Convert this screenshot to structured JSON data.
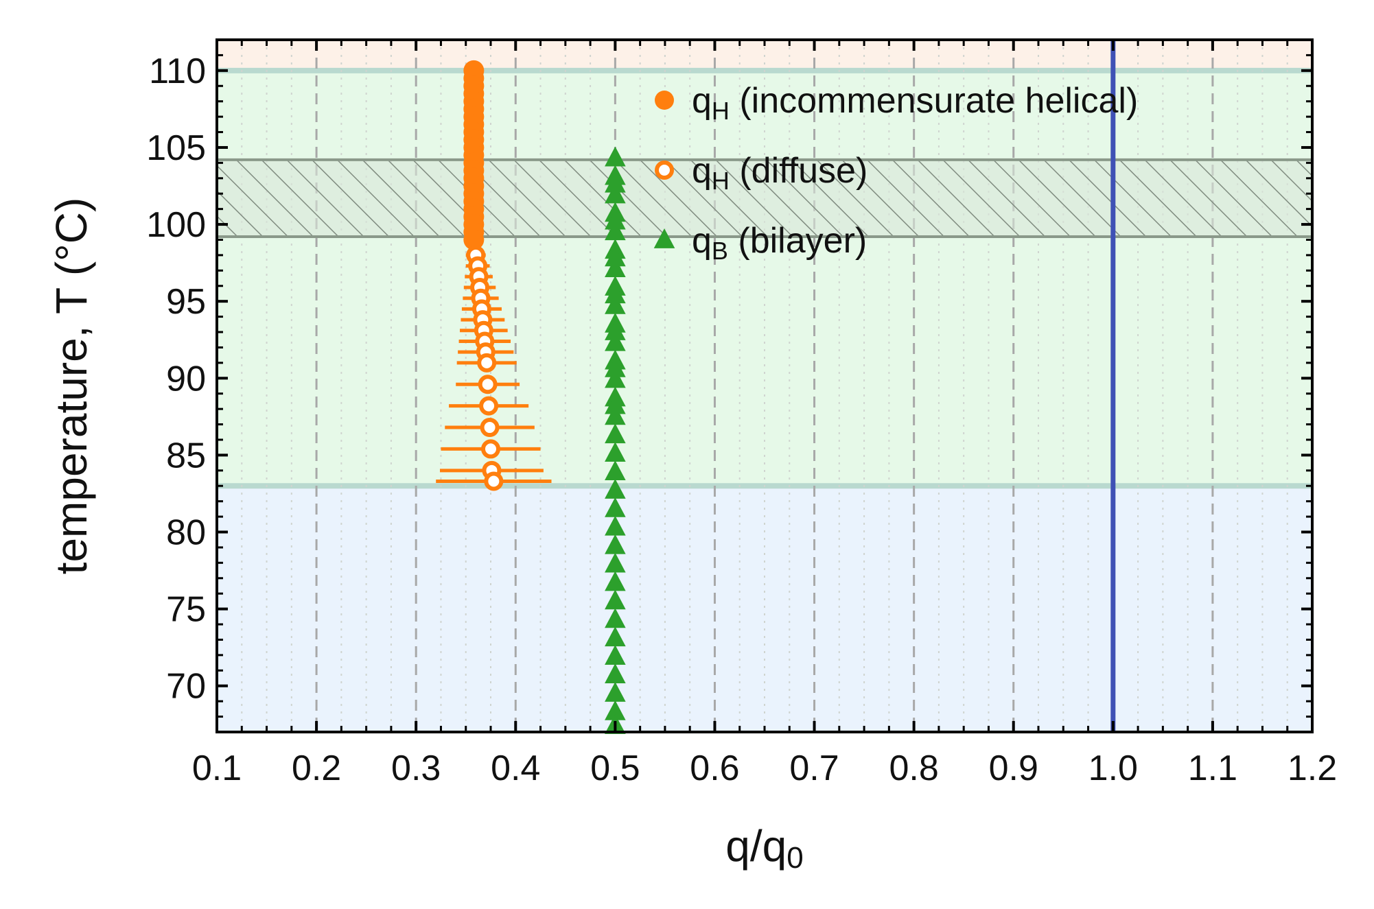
{
  "chart_data": {
    "type": "scatter",
    "xlabel": "q/q",
    "xlabel_sub": "0",
    "ylabel": "temperature, T (°C)",
    "xlim": [
      0.1,
      1.2
    ],
    "ylim": [
      67,
      112
    ],
    "x_ticks": [
      0.1,
      0.2,
      0.3,
      0.4,
      0.5,
      0.6,
      0.7,
      0.8,
      0.9,
      1.0,
      1.1,
      1.2
    ],
    "x_tick_labels": [
      "0.1",
      "0.2",
      "0.3",
      "0.4",
      "0.5",
      "0.6",
      "0.7",
      "0.8",
      "0.9",
      "1.0",
      "1.1",
      "1.2"
    ],
    "y_ticks": [
      70,
      75,
      80,
      85,
      90,
      95,
      100,
      105,
      110
    ],
    "y_tick_labels": [
      "70",
      "75",
      "80",
      "85",
      "90",
      "95",
      "100",
      "105",
      "110"
    ],
    "grid": true,
    "legend_position": "top-right",
    "regions": [
      {
        "y_from": 67,
        "y_to": 83,
        "color": "#eaf3fd"
      },
      {
        "y_from": 83,
        "y_to": 110,
        "color": "#e6f9e8"
      },
      {
        "y_from": 110,
        "y_to": 112,
        "color": "#fdf1e8"
      }
    ],
    "region_boundaries": [
      83,
      110
    ],
    "hatched_band": {
      "y_from": 99.2,
      "y_to": 104.2
    },
    "reference_line_x": 1.0,
    "series": [
      {
        "name": "q",
        "name_sub": "H",
        "name_suffix": " (incommensurate helical)",
        "marker": "filled-circle",
        "color": "#ff7f0e",
        "x": [
          0.358,
          0.358,
          0.358,
          0.358,
          0.358,
          0.358,
          0.358,
          0.358,
          0.358,
          0.358,
          0.358,
          0.358,
          0.358,
          0.358,
          0.358,
          0.358,
          0.358,
          0.358,
          0.358,
          0.358,
          0.358,
          0.358,
          0.358
        ],
        "y": [
          110.0,
          109.5,
          109.0,
          108.5,
          108.0,
          107.5,
          107.0,
          106.5,
          106.0,
          105.5,
          105.0,
          104.5,
          104.0,
          103.5,
          103.0,
          102.5,
          102.0,
          101.5,
          101.0,
          100.5,
          100.0,
          99.5,
          99.0
        ]
      },
      {
        "name": "q",
        "name_sub": "H",
        "name_suffix": " (diffuse)",
        "marker": "open-circle",
        "color": "#ff7f0e",
        "x": [
          0.36,
          0.362,
          0.363,
          0.364,
          0.365,
          0.366,
          0.367,
          0.368,
          0.369,
          0.37,
          0.371,
          0.372,
          0.373,
          0.374,
          0.375,
          0.376,
          0.378
        ],
        "y": [
          98.0,
          97.3,
          96.6,
          95.9,
          95.2,
          94.5,
          93.8,
          93.1,
          92.4,
          91.7,
          91.0,
          89.6,
          88.2,
          86.8,
          85.4,
          84.0,
          83.3
        ],
        "xerr": [
          0.01,
          0.012,
          0.014,
          0.016,
          0.018,
          0.02,
          0.022,
          0.024,
          0.026,
          0.028,
          0.03,
          0.032,
          0.04,
          0.045,
          0.05,
          0.052,
          0.058
        ]
      },
      {
        "name": "q",
        "name_sub": "B",
        "name_suffix": " (bilayer)",
        "marker": "filled-triangle",
        "color": "#2ca02c",
        "x": [
          0.5,
          0.5,
          0.5,
          0.5,
          0.5,
          0.5,
          0.5,
          0.5,
          0.5,
          0.5,
          0.5,
          0.5,
          0.5,
          0.5,
          0.5,
          0.5,
          0.5,
          0.5,
          0.5,
          0.5,
          0.5,
          0.5,
          0.5,
          0.5,
          0.5,
          0.5,
          0.5,
          0.5,
          0.5,
          0.5,
          0.5,
          0.5,
          0.5,
          0.5,
          0.5,
          0.5,
          0.5,
          0.5,
          0.5
        ],
        "y": [
          104.3,
          103.1,
          101.9,
          100.7,
          99.5,
          98.3,
          97.1,
          95.9,
          94.7,
          93.5,
          92.3,
          91.1,
          89.9,
          88.7,
          87.5,
          86.3,
          85.1,
          83.9,
          82.7,
          81.5,
          80.3,
          79.1,
          77.9,
          76.7,
          75.5,
          74.3,
          73.1,
          71.9,
          70.7,
          69.5,
          68.3,
          67.4,
          102.6,
          100.2,
          97.8,
          95.4,
          93.0,
          90.6,
          88.2
        ]
      }
    ]
  }
}
